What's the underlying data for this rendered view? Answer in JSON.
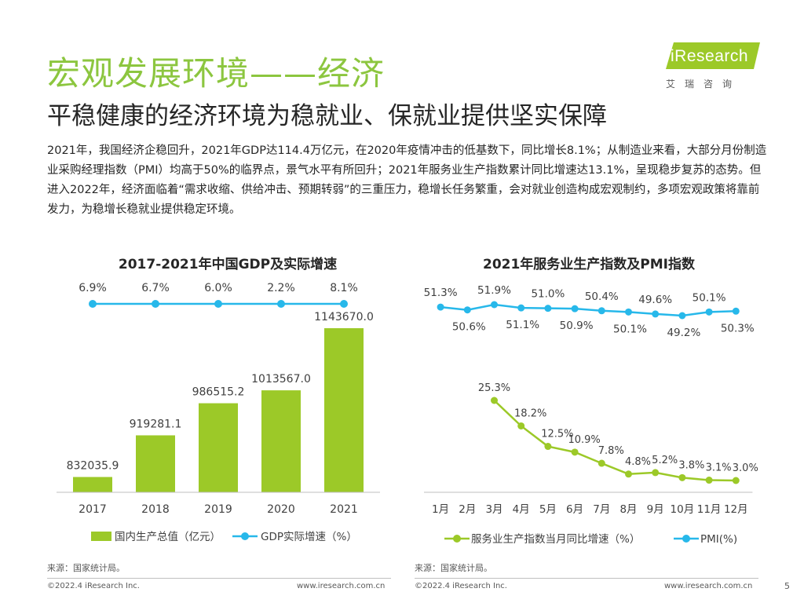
{
  "header": {
    "title": "宏观发展环境——经济",
    "subtitle": "平稳健康的经济环境为稳就业、保就业提供坚实保障",
    "body": "2021年，我国经济企稳回升，2021年GDP达114.4万亿元，在2020年疫情冲击的低基数下，同比增长8.1%；从制造业来看，大部分月份制造业采购经理指数（PMI）均高于50%的临界点，景气水平有所回升；2021年服务业生产指数累计同比增速达13.1%，呈现稳步复苏的态势。但进入2022年，经济面临着“需求收缩、供给冲击、预期转弱”的三重压力，稳增长任务繁重，会对就业创造构成宏观制约，多项宏观政策将靠前发力，为稳增长稳就业提供稳定环境。"
  },
  "logo": {
    "text": "iResearch",
    "sub": "艾瑞咨询"
  },
  "colors": {
    "green": "#9cc928",
    "blue": "#27b8ea",
    "title_green": "#8cc63f"
  },
  "chart_data": [
    {
      "type": "bar",
      "title": "2017-2021年中国GDP及实际增速",
      "categories": [
        "2017",
        "2018",
        "2019",
        "2020",
        "2021"
      ],
      "series": [
        {
          "name": "国内生产总值（亿元）",
          "type": "bar",
          "values": [
            832035.9,
            919281.1,
            986515.2,
            1013567.0,
            1143670.0
          ],
          "labels": [
            "832035.9",
            "919281.1",
            "986515.2",
            "1013567.0",
            "1143670.0"
          ]
        },
        {
          "name": "GDP实际增速（%）",
          "type": "line",
          "values": [
            6.9,
            6.7,
            6.0,
            2.2,
            8.1
          ],
          "labels": [
            "6.9%",
            "6.7%",
            "6.0%",
            "2.2%",
            "8.1%"
          ]
        }
      ]
    },
    {
      "type": "line",
      "title": "2021年服务业生产指数及PMI指数",
      "categories": [
        "1月",
        "2月",
        "3月",
        "4月",
        "5月",
        "6月",
        "7月",
        "8月",
        "9月",
        "10月",
        "11月",
        "12月"
      ],
      "series": [
        {
          "name": "PMI(%)",
          "values": [
            51.3,
            50.6,
            51.9,
            51.1,
            51.0,
            50.9,
            50.4,
            50.1,
            49.6,
            49.2,
            50.1,
            50.3
          ],
          "labels": [
            "51.3%",
            "50.6%",
            "51.9%",
            "51.1%",
            "51.0%",
            "50.9%",
            "50.4%",
            "50.1%",
            "49.6%",
            "49.2%",
            "50.1%",
            "50.3%"
          ]
        },
        {
          "name": "服务业生产指数当月同比增速（%）",
          "values": [
            null,
            null,
            25.3,
            18.2,
            12.5,
            10.9,
            7.8,
            4.8,
            5.2,
            3.8,
            3.1,
            3.0
          ],
          "labels": [
            "",
            "",
            "25.3%",
            "18.2%",
            "12.5%",
            "10.9%",
            "7.8%",
            "4.8%",
            "5.2%",
            "3.8%",
            "3.1%",
            "3.0%"
          ]
        }
      ]
    }
  ],
  "footer": {
    "source_left": "来源：国家统计局。",
    "source_right": "来源：国家统计局。",
    "copyright_left": "©2022.4 iResearch Inc.",
    "url_left": "www.iresearch.com.cn",
    "copyright_right": "©2022.4 iResearch Inc.",
    "url_right": "www.iresearch.com.cn",
    "page": "5"
  }
}
